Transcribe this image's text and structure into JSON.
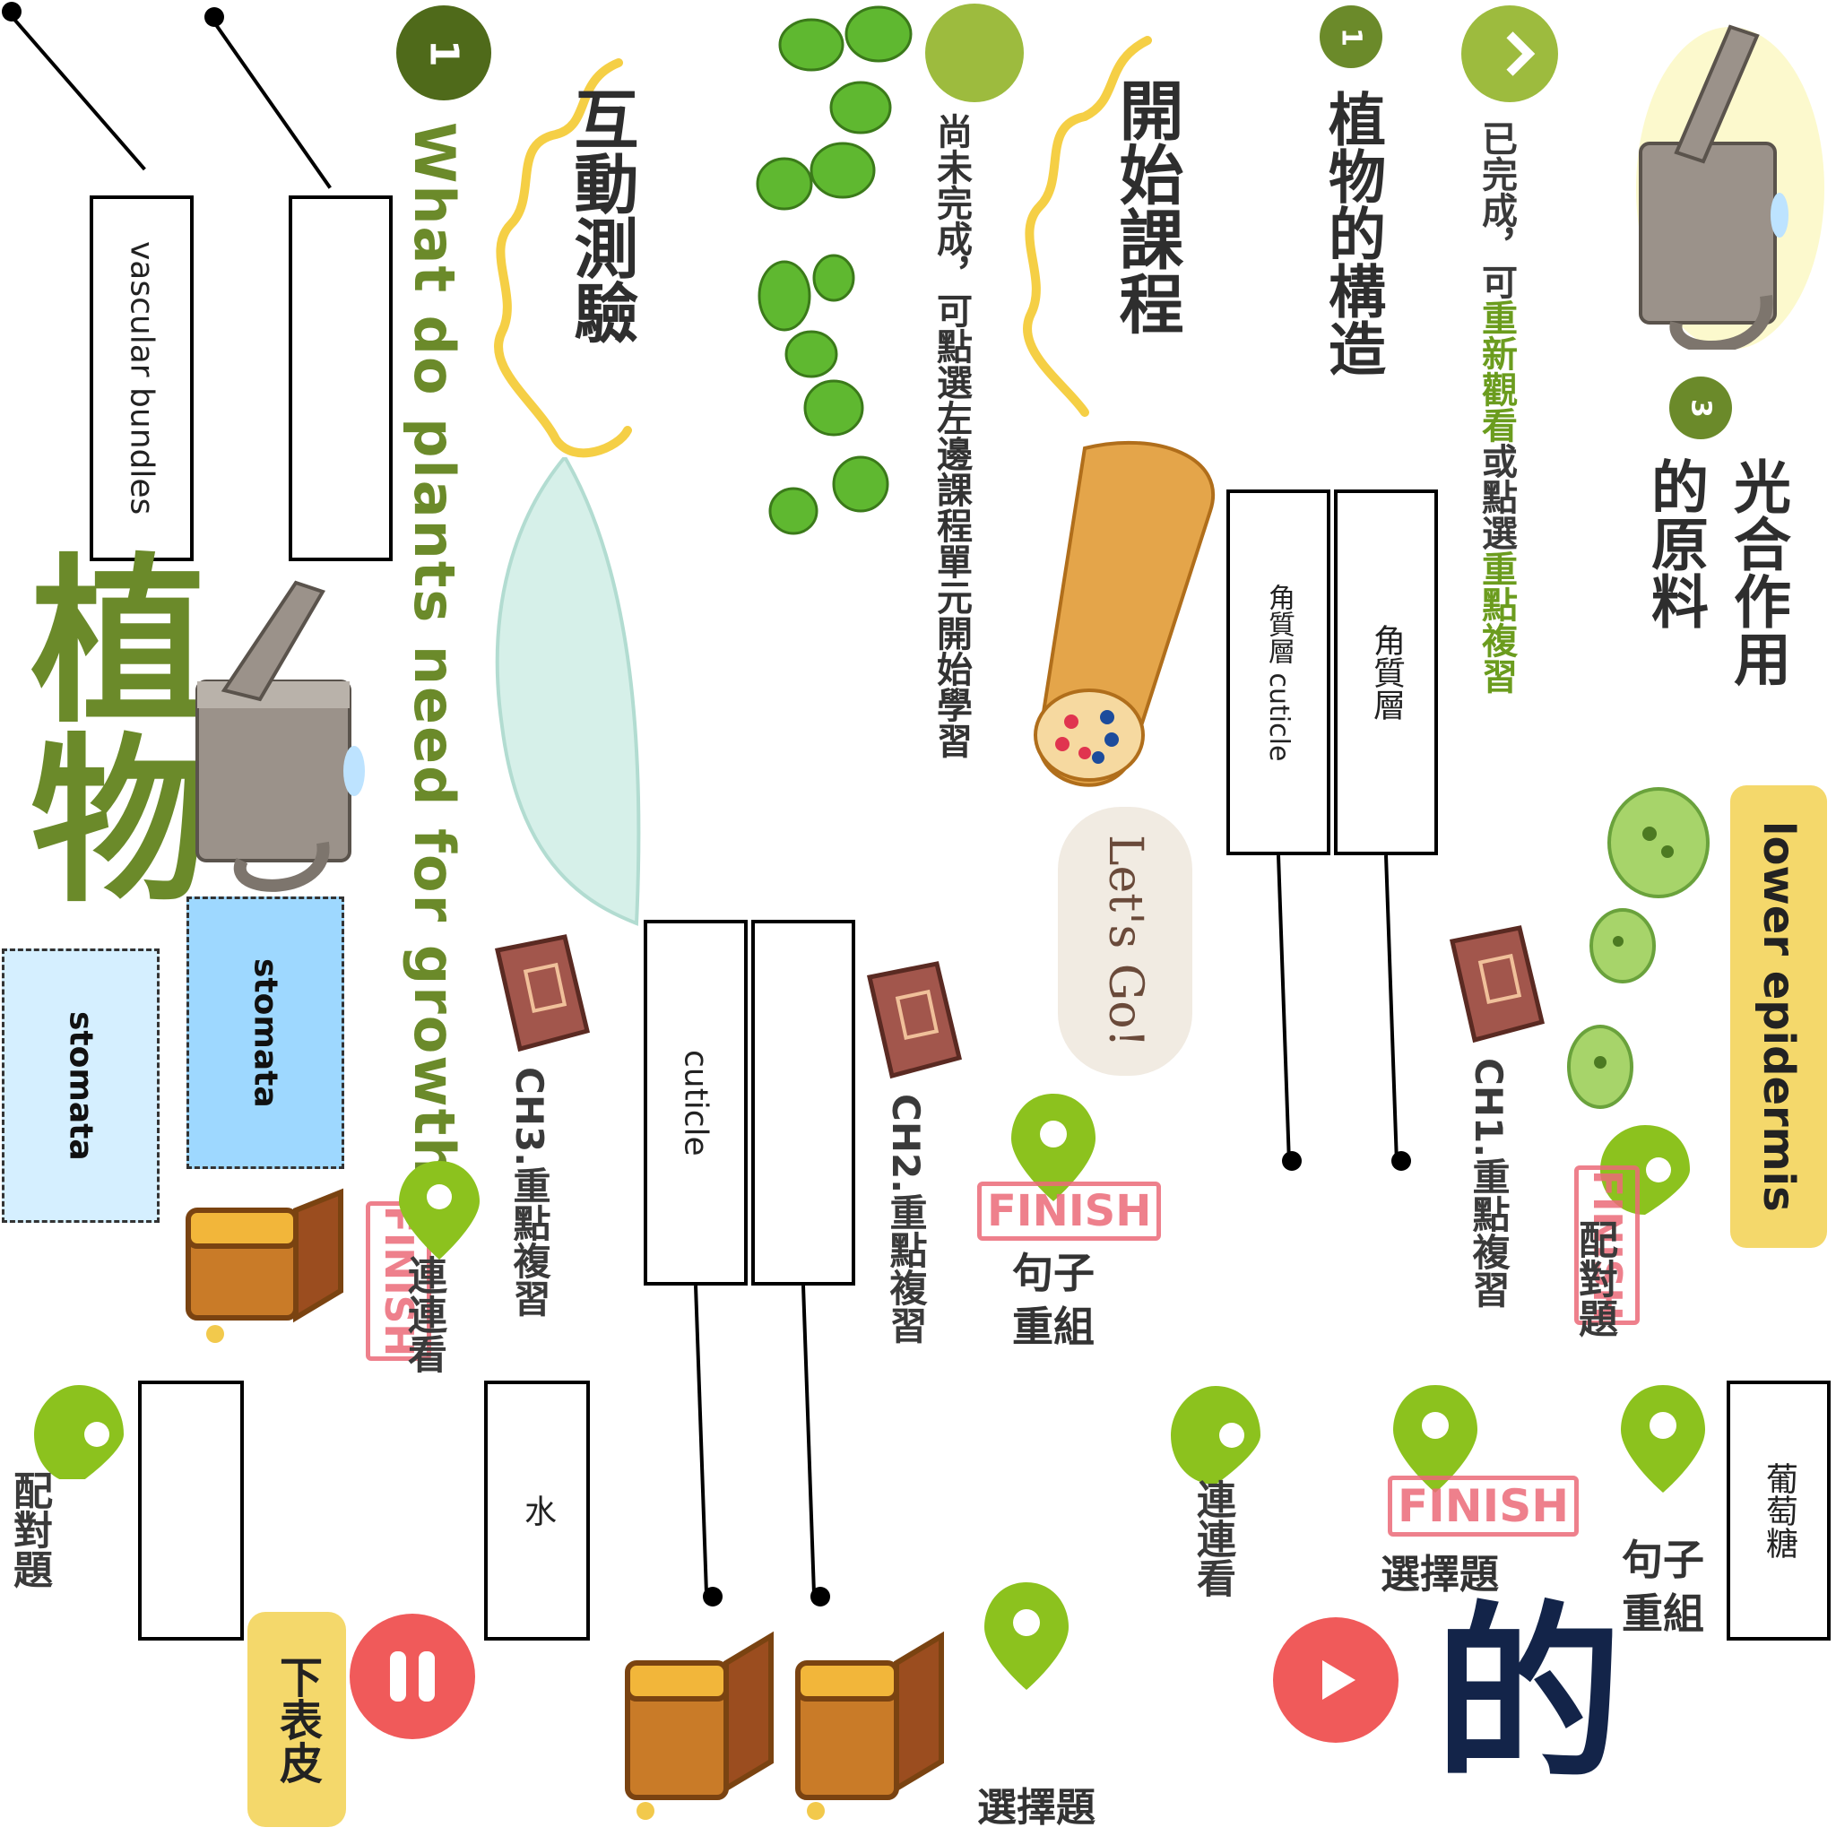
{
  "labels": {
    "interactive_quiz": "互動測驗",
    "start_course": "開始課程",
    "plant_structure": "植物的構造",
    "photosynthesis_materials": "光合作用的原料",
    "question": "What do plants need for growth?",
    "not_completed": "尚未完成，可點選左邊課程單元開始學習",
    "completed_prefix": "已完成，可",
    "rewatch": "重新觀看",
    "or_click": "或點選",
    "key_review": "重點複習",
    "big_plant": "植物",
    "big_de": "的",
    "lets_go": "Let's Go!"
  },
  "boxes": {
    "vascular_bundles": "vascular bundles",
    "empty_1": "",
    "cuticle_left": "cuticle",
    "cuticle_cn_en": "角質層 cuticle",
    "cuticle_cn": "角質層",
    "glucose": "葡萄糖",
    "water": "水",
    "empty_2": "",
    "empty_3": ""
  },
  "tags": {
    "lower_epidermis": "lower epidermis",
    "lower_epidermis_cn": "下表皮",
    "stomata_1": "stomata",
    "stomata_2": "stomata"
  },
  "chapters": {
    "ch1": "CH1.重點複習",
    "ch2": "CH2.重點複習",
    "ch3": "CH3.重點複習"
  },
  "activities": {
    "matching": "配對題",
    "matching_2": "配對題",
    "connect": "連連看",
    "connect_2": "連連看",
    "sentence": "句子重組",
    "sentence_2": "句子重組",
    "choice": "選擇題",
    "choice_2": "選擇題",
    "finish": "FINISH"
  },
  "numbers": {
    "n1a": "1",
    "n1b": "1",
    "n3": "3"
  },
  "colors": {
    "green_dark": "#4f6a1a",
    "green_light": "#8cc21e",
    "olive": "#6b8a2a",
    "red": "#f05a5a",
    "yellow": "#f4d86b",
    "blue_light": "#9ed8ff",
    "navy": "#132449"
  }
}
